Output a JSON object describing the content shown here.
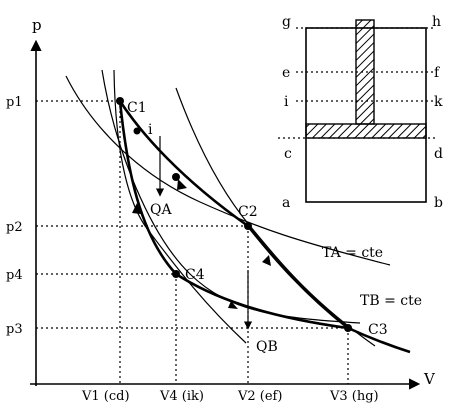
{
  "axes": {
    "y_label": "p",
    "x_label": "V",
    "y_ticks": [
      "p1",
      "p2",
      "p4",
      "p3"
    ],
    "x_ticks": [
      "V1 (cd)",
      "V4 (ik)",
      "V2 (ef)",
      "V3 (hg)"
    ]
  },
  "points": {
    "c1": "C1",
    "c2": "C2",
    "c3": "C3",
    "c4": "C4",
    "i": "i",
    "qa": "QA",
    "qb": "QB"
  },
  "isotherms": {
    "ta": "TA = cte",
    "tb": "TB = cte"
  },
  "cylinder": {
    "left": [
      "g",
      "e",
      "i",
      "c",
      "a"
    ],
    "right": [
      "h",
      "f",
      "k",
      "d",
      "b"
    ]
  }
}
